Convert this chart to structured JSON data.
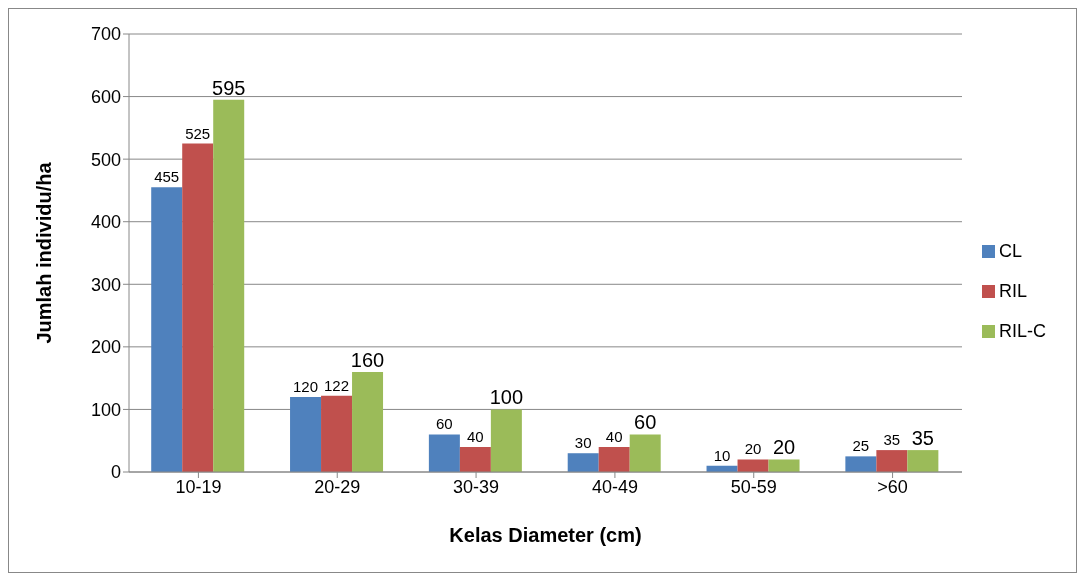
{
  "chart_data": {
    "type": "bar",
    "xlabel": "Kelas Diameter (cm)",
    "ylabel": "Jumlah individu/ha",
    "categories": [
      "10-19",
      "20-29",
      "30-39",
      "40-49",
      "50-59",
      ">60"
    ],
    "series": [
      {
        "name": "CL",
        "color": "#4f81bd",
        "values": [
          455,
          120,
          60,
          30,
          10,
          25
        ]
      },
      {
        "name": "RIL",
        "color": "#c0504d",
        "values": [
          525,
          122,
          40,
          40,
          20,
          35
        ]
      },
      {
        "name": "RIL-C",
        "color": "#9bbb59",
        "values": [
          595,
          160,
          100,
          60,
          20,
          35
        ]
      }
    ],
    "ylim": [
      0,
      700
    ],
    "yticks": [
      0,
      100,
      200,
      300,
      400,
      500,
      600,
      700
    ],
    "grid": "y",
    "legend": "right",
    "data_labels": true
  }
}
